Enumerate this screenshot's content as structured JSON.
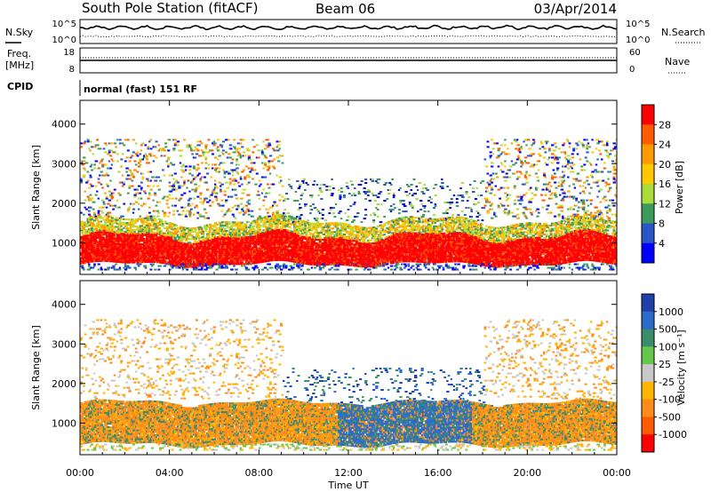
{
  "header": {
    "station": "South Pole Station (fitACF)",
    "beam": "Beam 06",
    "date": "03/Apr/2014"
  },
  "top_panels": {
    "nsky_label": "N.Sky",
    "nsearch_label": "N.Search",
    "noise_ticks": [
      "10^5",
      "10^0"
    ],
    "freq_label": "Freq.",
    "freq_unit": "[MHz]",
    "freq_ticks": [
      "18",
      "8"
    ],
    "nave_label": "Nave",
    "nave_ticks": [
      "60",
      "0"
    ],
    "cpid_label": "CPID",
    "cpid_text": "normal (fast) 151 RF"
  },
  "chart_data": [
    {
      "type": "heatmap",
      "ylabel": "Slant Range [km]",
      "ylim": [
        200,
        4600
      ],
      "yticks": [
        1000,
        2000,
        3000,
        4000
      ],
      "xlim": [
        0,
        24
      ],
      "colorbar": {
        "label": "Power [dB]",
        "ticks": [
          "28",
          "24",
          "20",
          "16",
          "12",
          "8",
          "4"
        ],
        "colors": [
          "#ff0000",
          "#ff5a00",
          "#ff9a00",
          "#ffc800",
          "#aadc3c",
          "#3c9b5a",
          "#2a55c8",
          "#0000ff"
        ]
      },
      "echo_bands": [
        {
          "range_km": [
            400,
            1100
          ],
          "dominant": "high power",
          "value_db": 28
        },
        {
          "range_km": [
            1100,
            1500
          ],
          "dominant": "medium power",
          "value_db": 16
        },
        {
          "range_km": [
            1600,
            3600
          ],
          "dominant": "sporadic scatter",
          "value_db": 10
        }
      ]
    },
    {
      "type": "heatmap",
      "ylabel": "Slant Range [km]",
      "xlabel": "Time UT",
      "ylim": [
        200,
        4600
      ],
      "yticks": [
        1000,
        2000,
        3000,
        4000
      ],
      "xlim": [
        0,
        24
      ],
      "xticks": [
        "00:00",
        "04:00",
        "08:00",
        "12:00",
        "16:00",
        "20:00",
        "00:00"
      ],
      "colorbar": {
        "label": "Velocity [m s⁻¹]",
        "ticks": [
          "1000",
          "500",
          "100",
          "25",
          "-25",
          "-100",
          "-500",
          "-1000"
        ],
        "colors": [
          "#1f3faa",
          "#2a6acb",
          "#3a8c6a",
          "#66c84a",
          "#c8c8c8",
          "#ffb400",
          "#ff8c1a",
          "#ff5a00",
          "#ff0000"
        ]
      },
      "echo_bands": [
        {
          "range_km": [
            500,
            1500
          ],
          "dominant": "negative velocity",
          "value_ms": -200
        },
        {
          "range_km": [
            500,
            1500
          ],
          "time_ut": [
            11.5,
            17.5
          ],
          "dominant": "positive velocity",
          "value_ms": 500
        }
      ]
    }
  ]
}
